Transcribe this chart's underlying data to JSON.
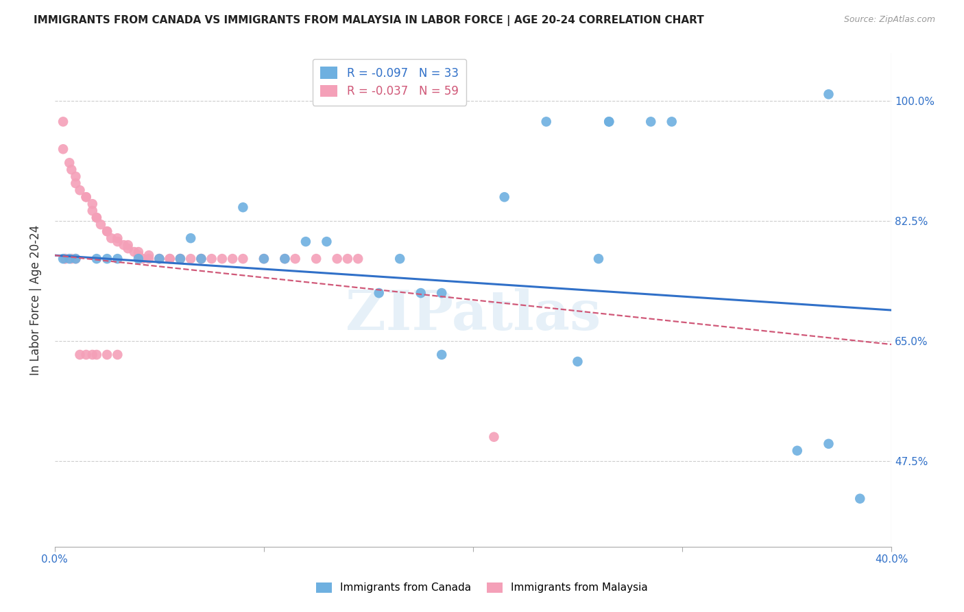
{
  "title": "IMMIGRANTS FROM CANADA VS IMMIGRANTS FROM MALAYSIA IN LABOR FORCE | AGE 20-24 CORRELATION CHART",
  "source": "Source: ZipAtlas.com",
  "ylabel": "In Labor Force | Age 20-24",
  "xlim": [
    0.0,
    0.4
  ],
  "ylim": [
    0.35,
    1.07
  ],
  "yticks": [
    0.475,
    0.65,
    0.825,
    1.0
  ],
  "ytick_labels": [
    "47.5%",
    "65.0%",
    "82.5%",
    "100.0%"
  ],
  "xticks": [
    0.0,
    0.1,
    0.2,
    0.3,
    0.4
  ],
  "xtick_labels": [
    "0.0%",
    "",
    "",
    "",
    "40.0%"
  ],
  "blue_R": -0.097,
  "blue_N": 33,
  "pink_R": -0.037,
  "pink_N": 59,
  "blue_color": "#6eb0e0",
  "pink_color": "#f4a0b8",
  "trend_blue_color": "#3070c8",
  "trend_pink_color": "#d05878",
  "watermark": "ZIPatlas",
  "blue_scatter_x": [
    0.004,
    0.007,
    0.01,
    0.02,
    0.025,
    0.03,
    0.04,
    0.05,
    0.06,
    0.065,
    0.07,
    0.09,
    0.1,
    0.11,
    0.12,
    0.13,
    0.155,
    0.165,
    0.175,
    0.185,
    0.215,
    0.235,
    0.265,
    0.265,
    0.285,
    0.295,
    0.26,
    0.25,
    0.185,
    0.37,
    0.355,
    0.37,
    0.385
  ],
  "blue_scatter_y": [
    0.77,
    0.77,
    0.77,
    0.77,
    0.77,
    0.77,
    0.77,
    0.77,
    0.77,
    0.8,
    0.77,
    0.845,
    0.77,
    0.77,
    0.795,
    0.795,
    0.72,
    0.77,
    0.72,
    0.72,
    0.86,
    0.97,
    0.97,
    0.97,
    0.97,
    0.97,
    0.77,
    0.62,
    0.63,
    1.01,
    0.49,
    0.5,
    0.42
  ],
  "pink_scatter_x": [
    0.004,
    0.004,
    0.007,
    0.008,
    0.01,
    0.01,
    0.012,
    0.015,
    0.015,
    0.018,
    0.018,
    0.02,
    0.02,
    0.022,
    0.025,
    0.025,
    0.027,
    0.03,
    0.03,
    0.033,
    0.035,
    0.035,
    0.038,
    0.04,
    0.04,
    0.042,
    0.045,
    0.045,
    0.05,
    0.05,
    0.055,
    0.055,
    0.06,
    0.06,
    0.065,
    0.07,
    0.07,
    0.075,
    0.08,
    0.085,
    0.09,
    0.1,
    0.11,
    0.115,
    0.125,
    0.135,
    0.14,
    0.145,
    0.005,
    0.005,
    0.008,
    0.01,
    0.012,
    0.015,
    0.018,
    0.02,
    0.025,
    0.03,
    0.21
  ],
  "pink_scatter_y": [
    0.97,
    0.93,
    0.91,
    0.9,
    0.89,
    0.88,
    0.87,
    0.86,
    0.86,
    0.85,
    0.84,
    0.83,
    0.83,
    0.82,
    0.81,
    0.81,
    0.8,
    0.8,
    0.795,
    0.79,
    0.79,
    0.785,
    0.78,
    0.78,
    0.775,
    0.77,
    0.77,
    0.775,
    0.77,
    0.77,
    0.77,
    0.77,
    0.77,
    0.77,
    0.77,
    0.77,
    0.77,
    0.77,
    0.77,
    0.77,
    0.77,
    0.77,
    0.77,
    0.77,
    0.77,
    0.77,
    0.77,
    0.77,
    0.77,
    0.77,
    0.77,
    0.77,
    0.63,
    0.63,
    0.63,
    0.63,
    0.63,
    0.63,
    0.51
  ],
  "blue_trend_x0": 0.0,
  "blue_trend_y0": 0.775,
  "blue_trend_x1": 0.4,
  "blue_trend_y1": 0.695,
  "pink_trend_x0": 0.0,
  "pink_trend_y0": 0.775,
  "pink_trend_x1": 0.4,
  "pink_trend_y1": 0.645
}
